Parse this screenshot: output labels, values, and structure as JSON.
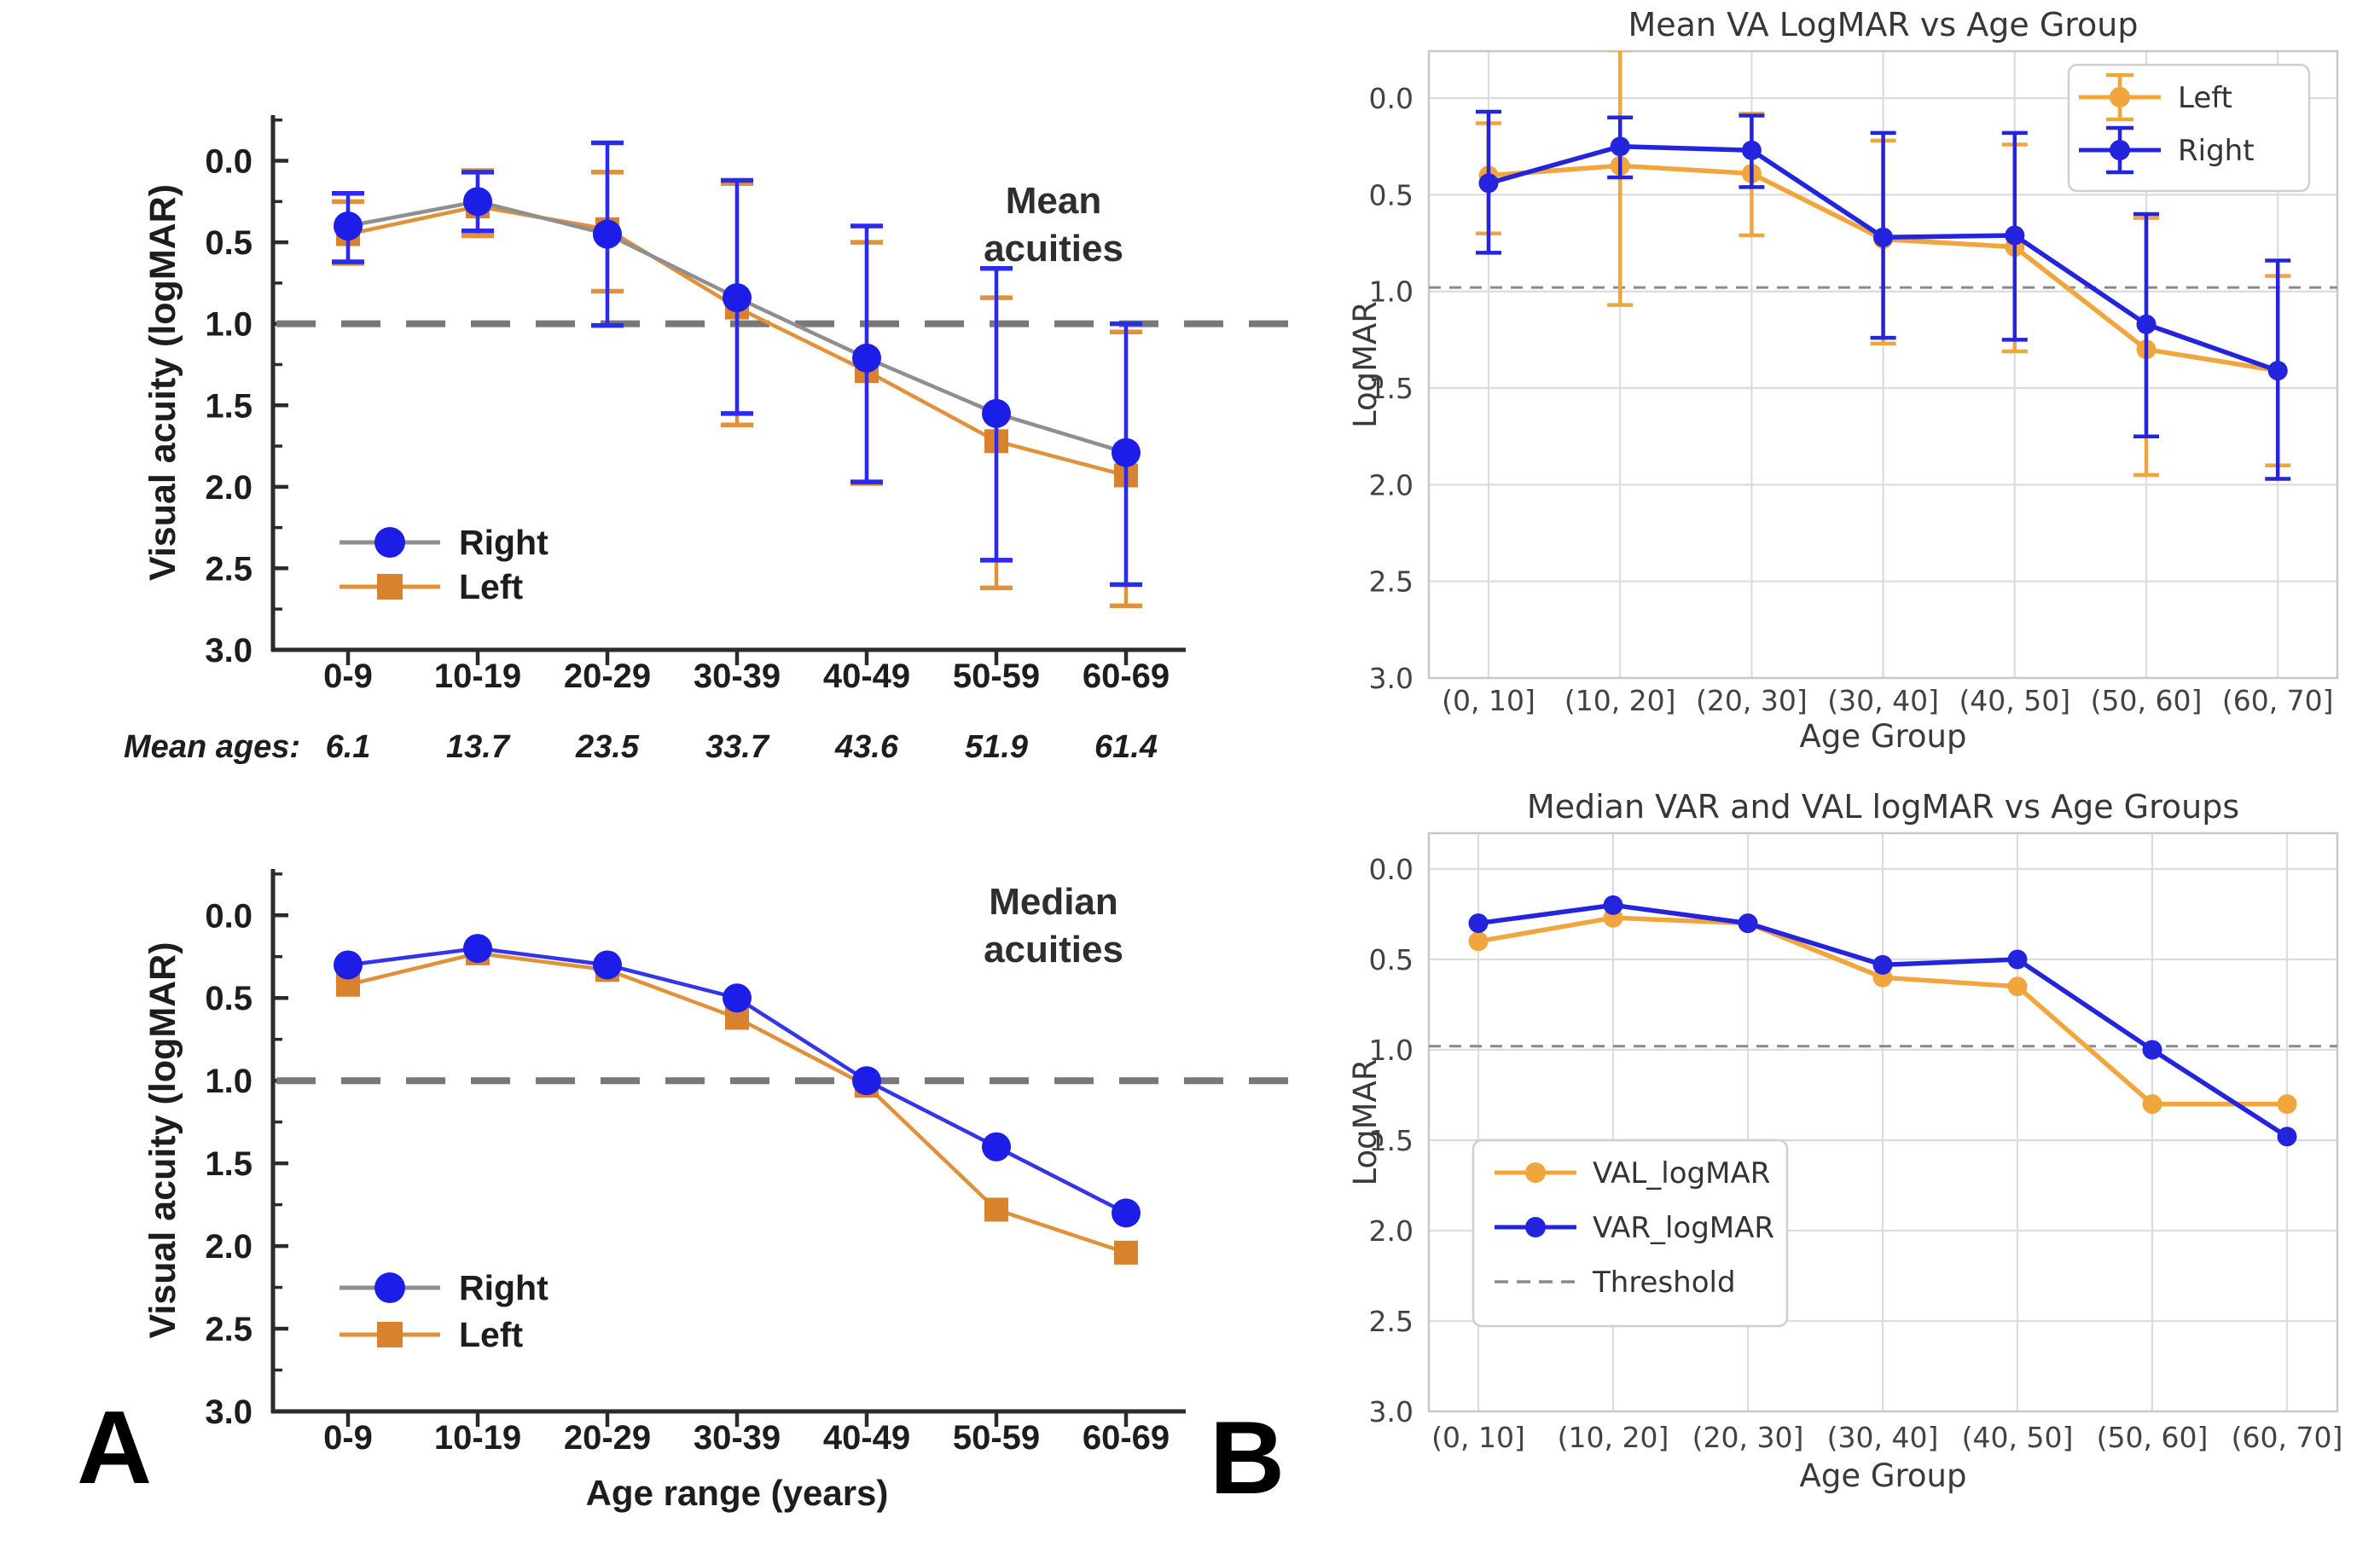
{
  "figure": {
    "panel_a_label": "A",
    "panel_b_label": "B",
    "colors": {
      "blue_a": "#1d1de8",
      "orange_a": "#d9822e",
      "orange_line_a": "#e0913a",
      "gray_line_a": "#8f8f8f",
      "blue_b": "#2424dd",
      "orange_b": "#f0a63c",
      "threshold_gray": "#787878",
      "grid_gray": "#dcdcdc"
    }
  },
  "chart_data": [
    {
      "id": "a1",
      "type": "line",
      "style": "origin",
      "inside_label": [
        "Mean",
        "acuities"
      ],
      "ylabel": "Visual acuity (logMAR)",
      "xlabel": null,
      "yticks": [
        0.0,
        0.5,
        1.0,
        1.5,
        2.0,
        2.5,
        3.0
      ],
      "ytick_labels": [
        "0.0",
        "0.5",
        "1.0",
        "1.5",
        "2.0",
        "2.5",
        "3.0"
      ],
      "ylim": [
        -0.28,
        3.0
      ],
      "grid": false,
      "threshold": 1.0,
      "categories": [
        "0-9",
        "10-19",
        "20-29",
        "30-39",
        "40-49",
        "50-59",
        "60-69"
      ],
      "series": [
        {
          "name": "Left",
          "marker": "square",
          "marker_color": "#d9822e",
          "line_color": "#e0913a",
          "err_color": "#e0913a",
          "values": [
            0.45,
            0.28,
            0.42,
            0.9,
            1.29,
            1.72,
            1.93
          ],
          "err_low": [
            0.25,
            0.06,
            0.07,
            0.14,
            0.5,
            0.84,
            1.05
          ],
          "err_high": [
            0.63,
            0.46,
            0.8,
            1.62,
            1.98,
            2.62,
            2.73
          ]
        },
        {
          "name": "Right",
          "marker": "circle",
          "marker_color": "#1d1de8",
          "line_color": "#8f8f8f",
          "err_color": "#2a2af0",
          "values": [
            0.4,
            0.25,
            0.45,
            0.84,
            1.21,
            1.55,
            1.79
          ],
          "err_low": [
            0.2,
            0.07,
            -0.11,
            0.12,
            0.4,
            0.66,
            1.0
          ],
          "err_high": [
            0.62,
            0.43,
            1.01,
            1.55,
            1.97,
            2.45,
            2.6
          ]
        }
      ],
      "legend": {
        "items": [
          {
            "label": "Right",
            "swatch": "line-marker",
            "marker": "circle",
            "color": "#1d1de8",
            "line_color": "#8f8f8f"
          },
          {
            "label": "Left",
            "swatch": "line-marker",
            "marker": "square",
            "color": "#d9822e",
            "line_color": "#e0913a"
          }
        ]
      },
      "sub_row": {
        "label": "Mean ages:",
        "values": [
          "6.1",
          "13.7",
          "23.5",
          "33.7",
          "43.6",
          "51.9",
          "61.4"
        ]
      }
    },
    {
      "id": "a2",
      "type": "line",
      "style": "origin",
      "inside_label": [
        "Median",
        "acuities"
      ],
      "ylabel": "Visual acuity (logMAR)",
      "xlabel": "Age range (years)",
      "yticks": [
        0.0,
        0.5,
        1.0,
        1.5,
        2.0,
        2.5,
        3.0
      ],
      "ytick_labels": [
        "0.0",
        "0.5",
        "1.0",
        "1.5",
        "2.0",
        "2.5",
        "3.0"
      ],
      "ylim": [
        -0.28,
        3.0
      ],
      "grid": false,
      "threshold": 1.0,
      "categories": [
        "0-9",
        "10-19",
        "20-29",
        "30-39",
        "40-49",
        "50-59",
        "60-69"
      ],
      "series": [
        {
          "name": "Left",
          "marker": "square",
          "marker_color": "#d9822e",
          "line_color": "#e0913a",
          "err_color": "#e0913a",
          "values": [
            0.42,
            0.23,
            0.33,
            0.62,
            1.03,
            1.78,
            2.04
          ]
        },
        {
          "name": "Right",
          "marker": "circle",
          "marker_color": "#1d1de8",
          "line_color": "#3535e8",
          "err_color": "#2a2af0",
          "values": [
            0.3,
            0.2,
            0.3,
            0.5,
            1.0,
            1.4,
            1.8
          ]
        }
      ],
      "legend": {
        "items": [
          {
            "label": "Right",
            "swatch": "line-marker",
            "marker": "circle",
            "color": "#1d1de8",
            "line_color": "#8f8f8f"
          },
          {
            "label": "Left",
            "swatch": "line-marker",
            "marker": "square",
            "color": "#d9822e",
            "line_color": "#e0913a"
          }
        ]
      }
    },
    {
      "id": "b1",
      "type": "line",
      "style": "mpl",
      "title": "Mean VA LogMAR vs Age Group",
      "ylabel": "LogMAR",
      "xlabel": "Age Group",
      "yticks": [
        0.0,
        0.5,
        1.0,
        1.5,
        2.0,
        2.5,
        3.0
      ],
      "ytick_labels": [
        "0.0",
        "0.5",
        "1.0",
        "1.5",
        "2.0",
        "2.5",
        "3.0"
      ],
      "ylim": [
        -0.243,
        3.0
      ],
      "grid": true,
      "threshold": 1.0,
      "categories": [
        "(0, 10]",
        "(10, 20]",
        "(20, 30]",
        "(30, 40]",
        "(40, 50]",
        "(50, 60]",
        "(60, 70]"
      ],
      "series": [
        {
          "name": "Left",
          "marker": "circle",
          "marker_color": "#f0a63c",
          "line_color": "#f0a63c",
          "err_color": "#f0a63c",
          "values": [
            0.4,
            0.35,
            0.39,
            0.73,
            0.77,
            1.3,
            1.41
          ],
          "err_low": [
            0.13,
            -0.25,
            0.08,
            0.22,
            0.24,
            0.62,
            0.92
          ],
          "err_high": [
            0.7,
            1.07,
            0.71,
            1.27,
            1.31,
            1.95,
            1.9
          ]
        },
        {
          "name": "Right",
          "marker": "circle",
          "marker_color": "#2424dd",
          "line_color": "#2424dd",
          "err_color": "#2424dd",
          "values": [
            0.44,
            0.25,
            0.27,
            0.72,
            0.71,
            1.17,
            1.41
          ],
          "err_low": [
            0.07,
            0.1,
            0.09,
            0.18,
            0.18,
            0.6,
            0.84
          ],
          "err_high": [
            0.8,
            0.41,
            0.46,
            1.24,
            1.25,
            1.75,
            1.97
          ]
        }
      ],
      "legend": {
        "border": true,
        "items": [
          {
            "label": "Left",
            "swatch": "errbar",
            "color": "#f0a63c",
            "line_color": "#f0a63c"
          },
          {
            "label": "Right",
            "swatch": "errbar",
            "color": "#2424dd",
            "line_color": "#2424dd"
          }
        ]
      }
    },
    {
      "id": "b2",
      "type": "line",
      "style": "mpl",
      "title": "Median VAR and VAL logMAR vs Age Groups",
      "ylabel": "LogMAR",
      "xlabel": "Age Group",
      "yticks": [
        0.0,
        0.5,
        1.0,
        1.5,
        2.0,
        2.5,
        3.0
      ],
      "ytick_labels": [
        "0.0",
        "0.5",
        "1.0",
        "1.5",
        "2.0",
        "2.5",
        "3.0"
      ],
      "ylim": [
        -0.198,
        3.0
      ],
      "grid": true,
      "threshold": 1.0,
      "categories": [
        "(0, 10]",
        "(10, 20]",
        "(20, 30]",
        "(30, 40]",
        "(40, 50]",
        "(50, 60]",
        "(60, 70]"
      ],
      "series": [
        {
          "name": "VAL_logMAR",
          "marker": "circle",
          "marker_color": "#f0a63c",
          "line_color": "#f0a63c",
          "err_color": "#f0a63c",
          "values": [
            0.4,
            0.27,
            0.3,
            0.6,
            0.65,
            1.3,
            1.3
          ]
        },
        {
          "name": "VAR_logMAR",
          "marker": "circle",
          "marker_color": "#2424dd",
          "line_color": "#2424dd",
          "err_color": "#2424dd",
          "values": [
            0.3,
            0.2,
            0.3,
            0.53,
            0.5,
            1.0,
            1.48
          ]
        }
      ],
      "legend": {
        "border": true,
        "items": [
          {
            "label": "VAL_logMAR",
            "swatch": "line-marker",
            "marker": "circle",
            "color": "#f0a63c",
            "line_color": "#f0a63c"
          },
          {
            "label": "VAR_logMAR",
            "swatch": "line-marker",
            "marker": "circle",
            "color": "#2424dd",
            "line_color": "#2424dd"
          },
          {
            "label": "Threshold",
            "swatch": "dash",
            "color": "#8a8a8a",
            "line_color": "#8a8a8a"
          }
        ]
      }
    }
  ]
}
